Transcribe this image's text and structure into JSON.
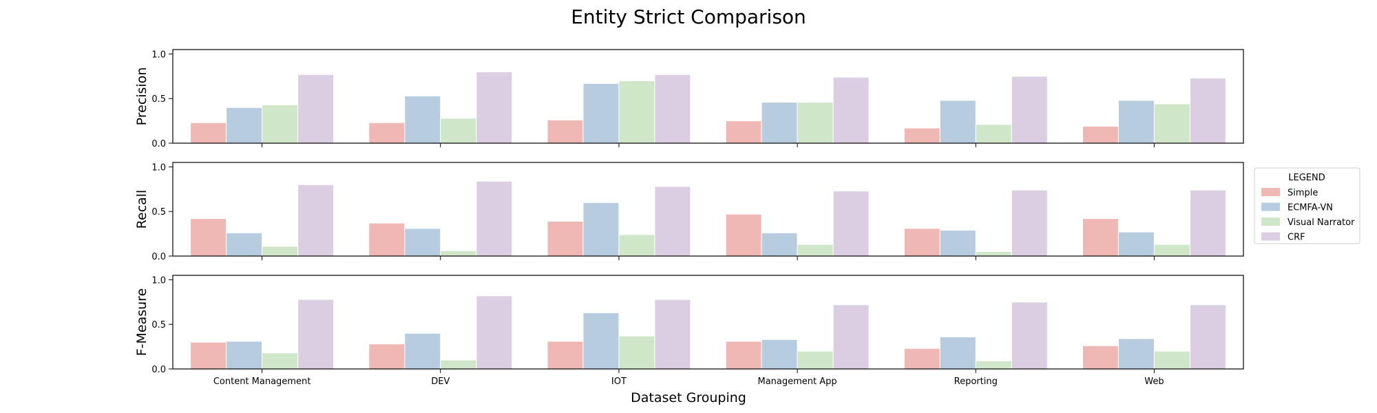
{
  "chart_data": {
    "type": "bar",
    "title": "Entity Strict Comparison",
    "xlabel": "Dataset Grouping",
    "categories": [
      "Content Management",
      "DEV",
      "IOT",
      "Management App",
      "Reporting",
      "Web"
    ],
    "ylim": [
      0,
      1.05
    ],
    "yticks": [
      "0.0",
      "0.5",
      "1.0"
    ],
    "legend": {
      "title": "LEGEND",
      "placement": "right"
    },
    "series": [
      {
        "name": "Simple",
        "color": "#f0b8b5"
      },
      {
        "name": "ECMFA-VN",
        "color": "#b8cce0"
      },
      {
        "name": "Visual Narrator",
        "color": "#cfe6c9"
      },
      {
        "name": "CRF",
        "color": "#dccee2"
      }
    ],
    "panels": [
      {
        "ylabel": "Precision",
        "values": [
          [
            0.23,
            0.4,
            0.43,
            0.77
          ],
          [
            0.23,
            0.53,
            0.28,
            0.8
          ],
          [
            0.26,
            0.67,
            0.7,
            0.77
          ],
          [
            0.25,
            0.46,
            0.46,
            0.74
          ],
          [
            0.17,
            0.48,
            0.21,
            0.75
          ],
          [
            0.19,
            0.48,
            0.44,
            0.73
          ]
        ]
      },
      {
        "ylabel": "Recall",
        "values": [
          [
            0.42,
            0.26,
            0.11,
            0.8
          ],
          [
            0.37,
            0.31,
            0.06,
            0.84
          ],
          [
            0.39,
            0.6,
            0.24,
            0.78
          ],
          [
            0.47,
            0.26,
            0.13,
            0.73
          ],
          [
            0.31,
            0.29,
            0.05,
            0.74
          ],
          [
            0.42,
            0.27,
            0.13,
            0.74
          ]
        ]
      },
      {
        "ylabel": "F-Measure",
        "values": [
          [
            0.3,
            0.31,
            0.18,
            0.78
          ],
          [
            0.28,
            0.4,
            0.1,
            0.82
          ],
          [
            0.31,
            0.63,
            0.37,
            0.78
          ],
          [
            0.31,
            0.33,
            0.2,
            0.72
          ],
          [
            0.23,
            0.36,
            0.09,
            0.75
          ],
          [
            0.26,
            0.34,
            0.2,
            0.72
          ]
        ]
      }
    ]
  }
}
